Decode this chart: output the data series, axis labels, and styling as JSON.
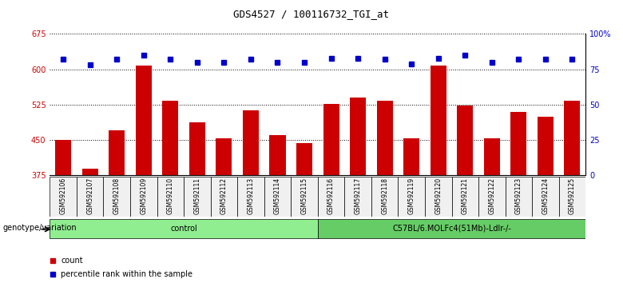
{
  "title": "GDS4527 / 100116732_TGI_at",
  "samples": [
    "GSM592106",
    "GSM592107",
    "GSM592108",
    "GSM592109",
    "GSM592110",
    "GSM592111",
    "GSM592112",
    "GSM592113",
    "GSM592114",
    "GSM592115",
    "GSM592116",
    "GSM592117",
    "GSM592118",
    "GSM592119",
    "GSM592120",
    "GSM592121",
    "GSM592122",
    "GSM592123",
    "GSM592124",
    "GSM592125"
  ],
  "counts": [
    450,
    390,
    470,
    608,
    533,
    487,
    453,
    513,
    460,
    443,
    527,
    540,
    533,
    453,
    608,
    523,
    453,
    510,
    500,
    533
  ],
  "percentile_ranks": [
    82,
    78,
    82,
    85,
    82,
    80,
    80,
    82,
    80,
    80,
    83,
    83,
    82,
    79,
    83,
    85,
    80,
    82,
    82,
    82
  ],
  "group_labels": [
    "control",
    "C57BL/6.MOLFc4(51Mb)-Ldlr-/-"
  ],
  "group_ranges": [
    [
      0,
      9
    ],
    [
      10,
      19
    ]
  ],
  "group_colors": [
    "#90EE90",
    "#66CC66"
  ],
  "bar_color": "#CC0000",
  "dot_color": "#0000CC",
  "ylim_left": [
    375,
    675
  ],
  "ylim_right": [
    0,
    100
  ],
  "yticks_left": [
    375,
    450,
    525,
    600,
    675
  ],
  "yticks_right": [
    0,
    25,
    50,
    75,
    100
  ],
  "ytick_labels_right": [
    "0",
    "25",
    "50",
    "75",
    "100%"
  ],
  "background_color": "#f0f0f0",
  "plot_bg": "#ffffff"
}
